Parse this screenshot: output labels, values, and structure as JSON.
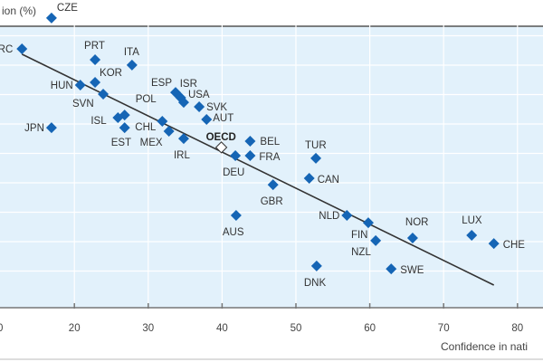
{
  "chart_data": {
    "type": "scatter",
    "ylabel": "ion (%)",
    "xlabel": "Confidence in nati",
    "xlim": [
      10,
      85
    ],
    "x_ticks": [
      "20",
      "30",
      "40",
      "50",
      "60",
      "70",
      "80"
    ],
    "x_tick_values": [
      20,
      30,
      40,
      50,
      60,
      70,
      80
    ],
    "first_tick_label": "0",
    "grid": true,
    "colors": {
      "point": "#1565b5",
      "oecd_fill": "#ffffff",
      "trend": "#333333",
      "plot_bg": "#e2f1fb",
      "grid": "#ffffff"
    },
    "trendline": {
      "x": [
        12.9,
        76.8
      ],
      "y": [
        86.2,
        7.7
      ]
    },
    "points": [
      {
        "label": "RC",
        "x": 12.9,
        "y": 88.0
      },
      {
        "label": "CZE",
        "x": 16.9,
        "y": 98.5
      },
      {
        "label": "PRT",
        "x": 22.8,
        "y": 84.3
      },
      {
        "label": "ITA",
        "x": 27.8,
        "y": 82.5
      },
      {
        "label": "KOR",
        "x": 22.8,
        "y": 76.6
      },
      {
        "label": "HUN",
        "x": 20.8,
        "y": 75.7
      },
      {
        "label": "SVN",
        "x": 23.9,
        "y": 72.6
      },
      {
        "label": "ISL",
        "x": 25.9,
        "y": 64.6
      },
      {
        "label": "POL",
        "x": 26.8,
        "y": 65.5
      },
      {
        "label": "EST",
        "x": 26.8,
        "y": 61.2
      },
      {
        "label": "JPN",
        "x": 16.9,
        "y": 61.2
      },
      {
        "label": "CHL",
        "x": 31.9,
        "y": 63.4
      },
      {
        "label": "MEX",
        "x": 32.8,
        "y": 60.0
      },
      {
        "label": "IRL",
        "x": 34.8,
        "y": 57.5
      },
      {
        "label": "ESP",
        "x": 33.7,
        "y": 73.2
      },
      {
        "label": "ISR",
        "x": 34.4,
        "y": 71.4
      },
      {
        "label": "USA",
        "x": 34.8,
        "y": 69.8
      },
      {
        "label": "SVK",
        "x": 36.9,
        "y": 68.3
      },
      {
        "label": "AUT",
        "x": 37.9,
        "y": 64.0
      },
      {
        "label": "OECD",
        "x": 39.9,
        "y": 54.5,
        "highlight": true
      },
      {
        "label": "DEU",
        "x": 41.8,
        "y": 51.7
      },
      {
        "label": "BEL",
        "x": 43.8,
        "y": 56.6
      },
      {
        "label": "FRA",
        "x": 43.8,
        "y": 51.7
      },
      {
        "label": "TUR",
        "x": 52.7,
        "y": 50.8
      },
      {
        "label": "CAN",
        "x": 51.8,
        "y": 44.0
      },
      {
        "label": "GBR",
        "x": 46.9,
        "y": 41.8
      },
      {
        "label": "AUS",
        "x": 41.9,
        "y": 31.4
      },
      {
        "label": "NLD",
        "x": 56.9,
        "y": 31.4
      },
      {
        "label": "FIN",
        "x": 59.8,
        "y": 28.9
      },
      {
        "label": "NZL",
        "x": 60.8,
        "y": 22.8
      },
      {
        "label": "NOR",
        "x": 65.8,
        "y": 23.7
      },
      {
        "label": "LUX",
        "x": 73.8,
        "y": 24.6
      },
      {
        "label": "CHE",
        "x": 76.8,
        "y": 21.8
      },
      {
        "label": "DNK",
        "x": 52.8,
        "y": 14.2
      },
      {
        "label": "SWE",
        "x": 62.9,
        "y": 13.2
      }
    ]
  }
}
